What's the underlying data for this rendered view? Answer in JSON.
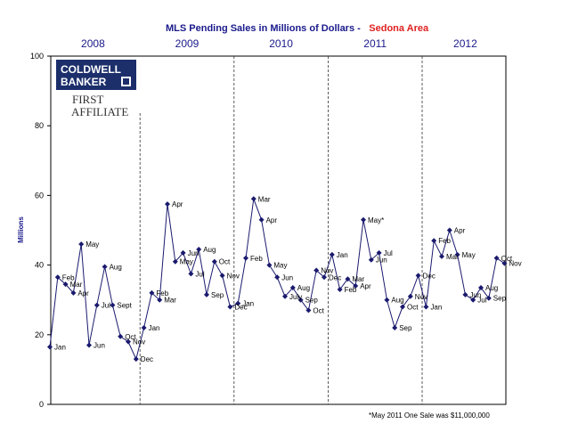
{
  "chart_data": {
    "type": "line",
    "title": "MLS Pending Sales in Millions of Dollars -",
    "title_area": "Sedona Area",
    "ylabel": "Millions",
    "ylim": [
      0,
      100
    ],
    "yticks": [
      0,
      20,
      40,
      60,
      80,
      100
    ],
    "grid": false,
    "series_color": "#1a1a6e",
    "years": [
      "2008",
      "2009",
      "2010",
      "2011",
      "2012"
    ],
    "note": "*May 2011 One Sale was $11,000,000",
    "logo": {
      "line1": "COLDWELL",
      "line2": "BANKER",
      "sub1": "FIRST",
      "sub2": "AFFILIATE"
    },
    "points": [
      {
        "label": "Jan",
        "value": 16.5
      },
      {
        "label": "Feb",
        "value": 36.5
      },
      {
        "label": "Mar",
        "value": 34.5
      },
      {
        "label": "Apr",
        "value": 32
      },
      {
        "label": "May",
        "value": 46
      },
      {
        "label": "Jun",
        "value": 17
      },
      {
        "label": "Jul",
        "value": 28.5
      },
      {
        "label": "Aug",
        "value": 39.5
      },
      {
        "label": "Sept",
        "value": 28.5
      },
      {
        "label": "Oct",
        "value": 19.5
      },
      {
        "label": "Nov",
        "value": 18
      },
      {
        "label": "Dec",
        "value": 13
      },
      {
        "label": "Jan",
        "value": 22
      },
      {
        "label": "Feb",
        "value": 32
      },
      {
        "label": "Mar",
        "value": 30
      },
      {
        "label": "Apr",
        "value": 57.5
      },
      {
        "label": "May",
        "value": 41
      },
      {
        "label": "Jun",
        "value": 43.5
      },
      {
        "label": "Jul",
        "value": 37.5
      },
      {
        "label": "Aug",
        "value": 44.5
      },
      {
        "label": "Sep",
        "value": 31.5
      },
      {
        "label": "Oct",
        "value": 41
      },
      {
        "label": "Nov",
        "value": 37
      },
      {
        "label": "Dec",
        "value": 28
      },
      {
        "label": "Jan",
        "value": 29
      },
      {
        "label": "Feb",
        "value": 42
      },
      {
        "label": "Mar",
        "value": 59
      },
      {
        "label": "Apr",
        "value": 53
      },
      {
        "label": "May",
        "value": 40
      },
      {
        "label": "Jun",
        "value": 36.5
      },
      {
        "label": "July",
        "value": 31
      },
      {
        "label": "Aug",
        "value": 33.5
      },
      {
        "label": "Sep",
        "value": 30
      },
      {
        "label": "Oct",
        "value": 27
      },
      {
        "label": "Nov",
        "value": 38.5
      },
      {
        "label": "Dec",
        "value": 36.5
      },
      {
        "label": "Jan",
        "value": 43
      },
      {
        "label": "Feb",
        "value": 33
      },
      {
        "label": "Mar",
        "value": 36
      },
      {
        "label": "Apr",
        "value": 34
      },
      {
        "label": "May*",
        "value": 53
      },
      {
        "label": "Jun",
        "value": 41.5
      },
      {
        "label": "Jul",
        "value": 43.5
      },
      {
        "label": "Aug",
        "value": 30
      },
      {
        "label": "Sep",
        "value": 22
      },
      {
        "label": "Oct",
        "value": 28
      },
      {
        "label": "Nov",
        "value": 31
      },
      {
        "label": "Dec",
        "value": 37
      },
      {
        "label": "Jan",
        "value": 28
      },
      {
        "label": "Feb",
        "value": 47
      },
      {
        "label": "Mar",
        "value": 42.5
      },
      {
        "label": "Apr",
        "value": 50
      },
      {
        "label": "May",
        "value": 43
      },
      {
        "label": "Jun",
        "value": 31.5
      },
      {
        "label": "Jul",
        "value": 30
      },
      {
        "label": "Aug",
        "value": 33.5
      },
      {
        "label": "Sep",
        "value": 30.5
      },
      {
        "label": "Oct",
        "value": 42
      },
      {
        "label": "Nov",
        "value": 40.5
      }
    ]
  }
}
